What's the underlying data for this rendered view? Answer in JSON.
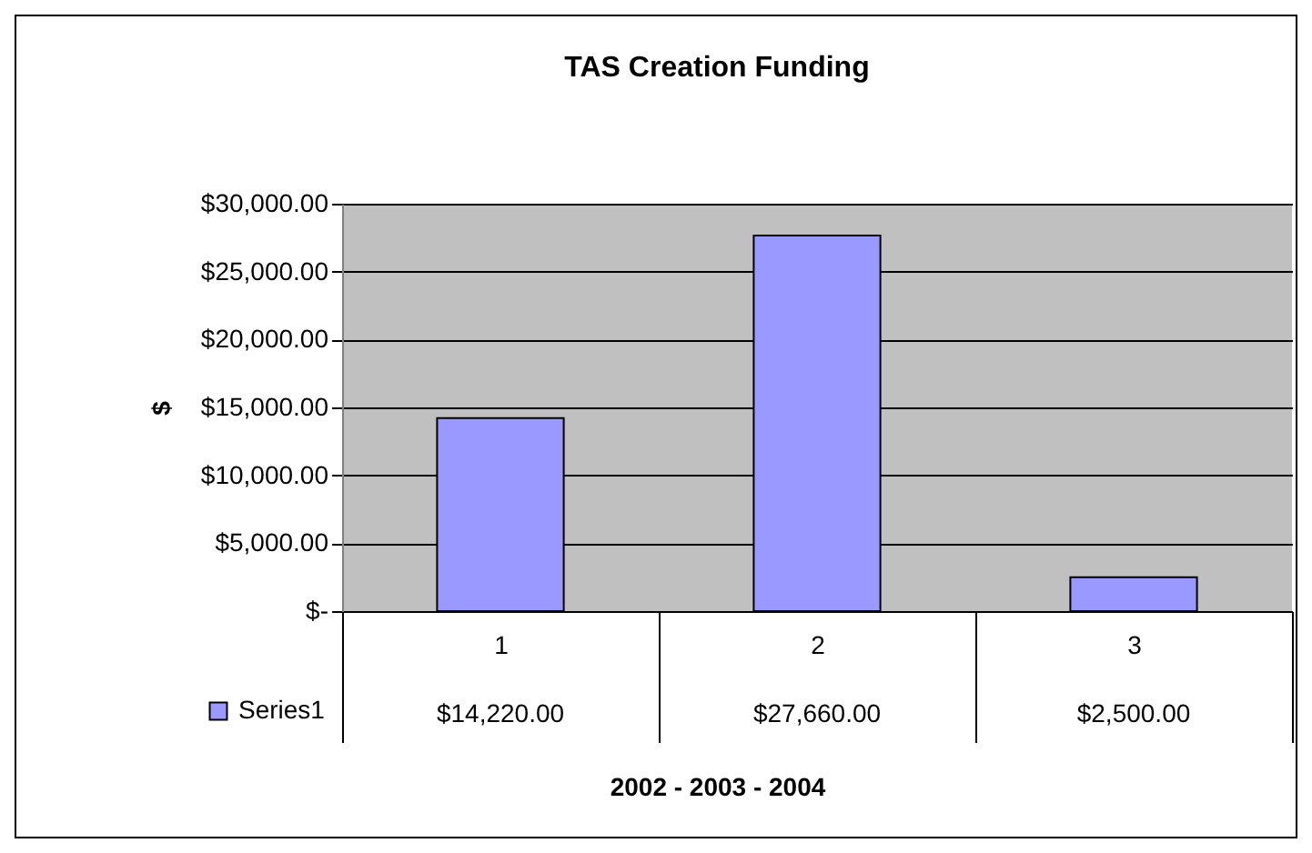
{
  "chart_data": {
    "type": "bar",
    "title": "TAS Creation Funding",
    "xlabel": "2002 - 2003 - 2004",
    "ylabel": "$",
    "categories": [
      "1",
      "2",
      "3"
    ],
    "series": [
      {
        "name": "Series1",
        "color": "#9999ff",
        "values": [
          14220,
          27660,
          2500
        ],
        "value_labels": [
          "$14,220.00",
          "$27,660.00",
          "$2,500.00"
        ]
      }
    ],
    "ylim": [
      0,
      30000
    ],
    "yticks": [
      {
        "value": 0,
        "label": "$-"
      },
      {
        "value": 5000,
        "label": "$5,000.00"
      },
      {
        "value": 10000,
        "label": "$10,000.00"
      },
      {
        "value": 15000,
        "label": "$15,000.00"
      },
      {
        "value": 20000,
        "label": "$20,000.00"
      },
      {
        "value": 25000,
        "label": "$25,000.00"
      },
      {
        "value": 30000,
        "label": "$30,000.00"
      }
    ],
    "grid": "y",
    "legend": "bottom left"
  }
}
